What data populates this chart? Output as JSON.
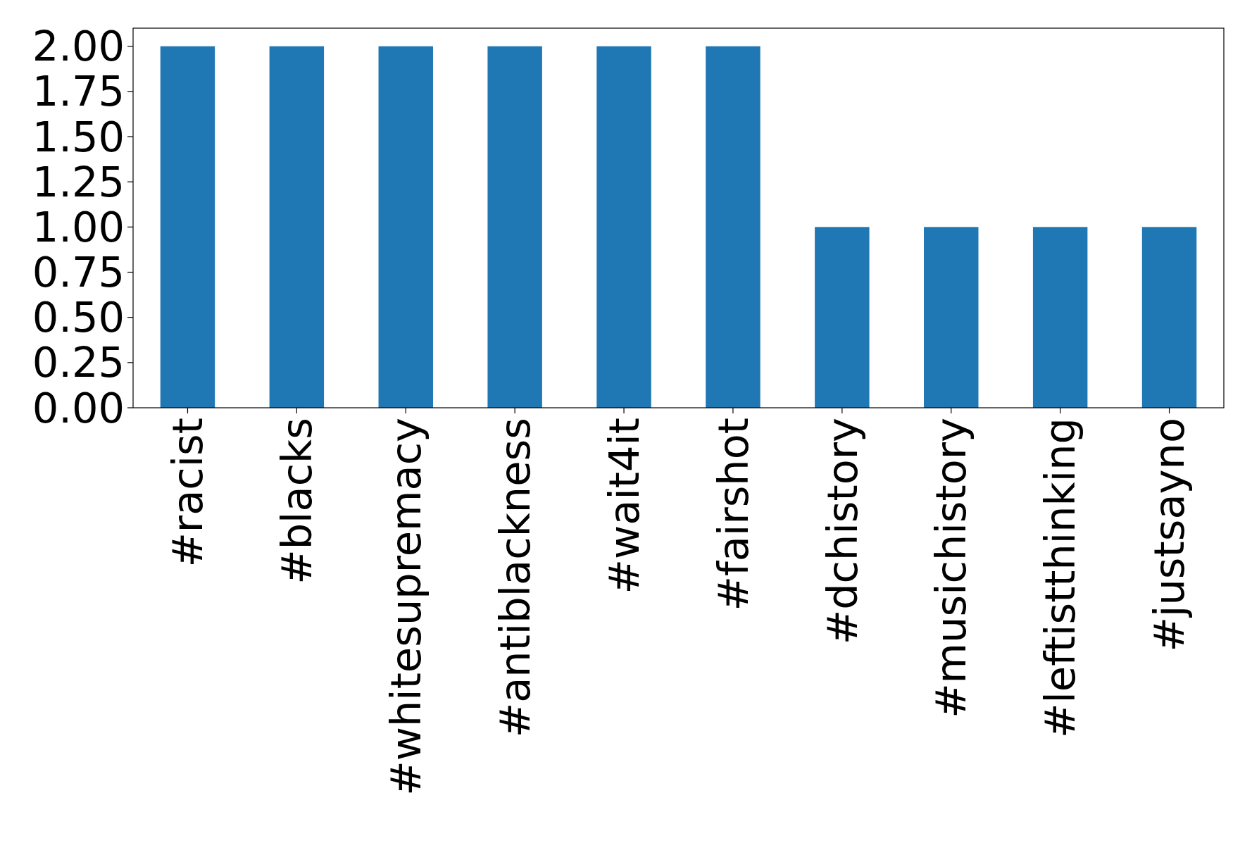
{
  "chart_data": {
    "type": "bar",
    "categories": [
      "#racist",
      "#blacks",
      "#whitesupremacy",
      "#antiblackness",
      "#wait4it",
      "#fairshot",
      "#dchistory",
      "#musichistory",
      "#leftistthinking",
      "#justsayno"
    ],
    "values": [
      2,
      2,
      2,
      2,
      2,
      2,
      1,
      1,
      1,
      1
    ],
    "color": "#1f77b4",
    "ylim": [
      0,
      2.1
    ],
    "yticks": [
      {
        "value": 0,
        "label": "0.00"
      },
      {
        "value": 0.25,
        "label": "0.25"
      },
      {
        "value": 0.5,
        "label": "0.50"
      },
      {
        "value": 0.75,
        "label": "0.75"
      },
      {
        "value": 1,
        "label": "1.00"
      },
      {
        "value": 1.25,
        "label": "1.25"
      },
      {
        "value": 1.5,
        "label": "1.50"
      },
      {
        "value": 1.75,
        "label": "1.75"
      },
      {
        "value": 2,
        "label": "2.00"
      }
    ],
    "grid": false
  }
}
